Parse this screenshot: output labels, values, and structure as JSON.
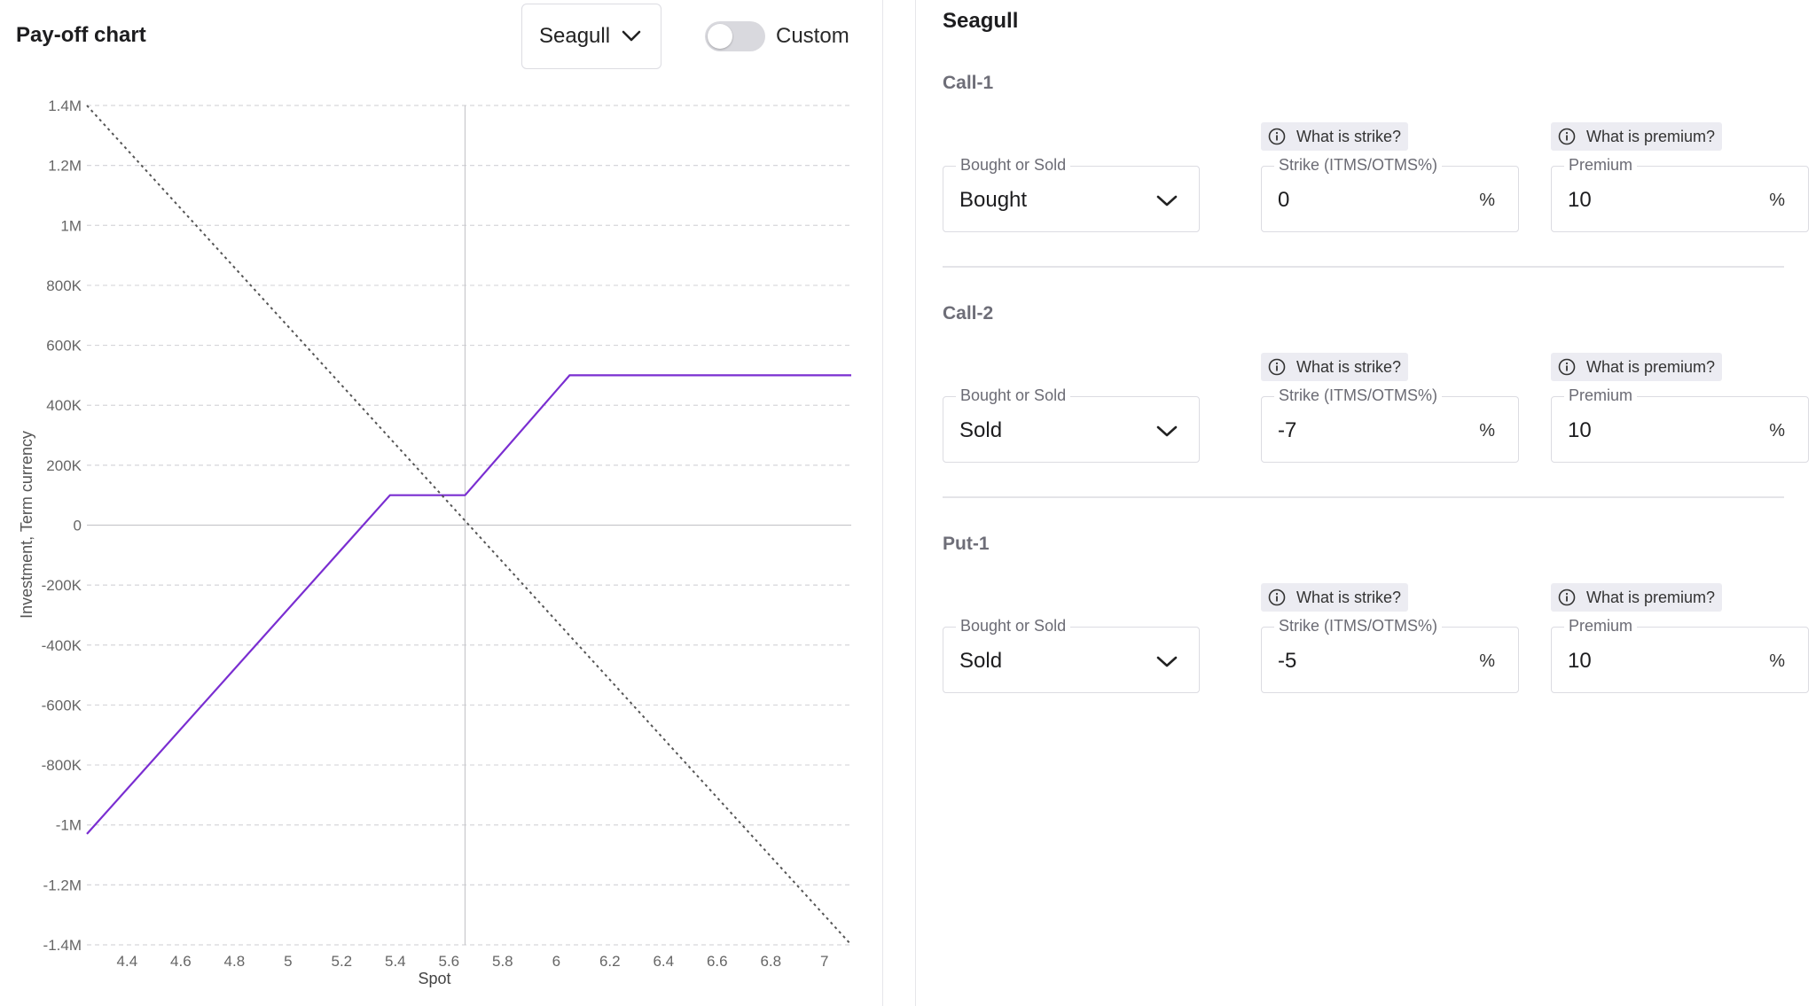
{
  "chart_panel": {
    "title": "Pay-off chart",
    "strategy_select": {
      "value": "Seagull"
    },
    "custom_toggle": {
      "label": "Custom",
      "on": false
    }
  },
  "chart_data": {
    "type": "line",
    "xlabel": "Spot",
    "ylabel": "Investment, Term currency",
    "xlim": [
      4.25,
      7.1
    ],
    "ylim": [
      -1400000,
      1400000
    ],
    "x_ticks": [
      "4.4",
      "4.6",
      "4.8",
      "5",
      "5.2",
      "5.4",
      "5.6",
      "5.8",
      "6",
      "6.2",
      "6.4",
      "6.6",
      "6.8",
      "7"
    ],
    "y_ticks": [
      {
        "value": 1400000,
        "label": "1.4M"
      },
      {
        "value": 1200000,
        "label": "1.2M"
      },
      {
        "value": 1000000,
        "label": "1M"
      },
      {
        "value": 800000,
        "label": "800K"
      },
      {
        "value": 600000,
        "label": "600K"
      },
      {
        "value": 400000,
        "label": "400K"
      },
      {
        "value": 200000,
        "label": "200K"
      },
      {
        "value": 0,
        "label": "0"
      },
      {
        "value": -200000,
        "label": "-200K"
      },
      {
        "value": -400000,
        "label": "-400K"
      },
      {
        "value": -600000,
        "label": "-600K"
      },
      {
        "value": -800000,
        "label": "-800K"
      },
      {
        "value": -1000000,
        "label": "-1M"
      },
      {
        "value": -1200000,
        "label": "-1.2M"
      },
      {
        "value": -1400000,
        "label": "-1.4M"
      }
    ],
    "grid": true,
    "spot_line_x": 5.66,
    "series": [
      {
        "style": "solid",
        "color": "#7a2ed1",
        "points": [
          [
            4.25,
            -1030000
          ],
          [
            5.38,
            100000
          ],
          [
            5.66,
            100000
          ],
          [
            6.05,
            500000
          ],
          [
            7.1,
            500000
          ]
        ]
      },
      {
        "style": "dotted",
        "color": "#555555",
        "points": [
          [
            4.25,
            1400000
          ],
          [
            7.1,
            -1400000
          ]
        ]
      }
    ]
  },
  "strategy_panel": {
    "title": "Seagull",
    "legs": [
      {
        "name": "Call-1",
        "strike_help": "What is strike?",
        "premium_help": "What is premium?",
        "bs_label": "Bought or Sold",
        "bs_value": "Bought",
        "strike_label": "Strike (ITMS/OTMS%)",
        "strike_value": "0",
        "strike_unit": "%",
        "premium_label": "Premium",
        "premium_value": "10",
        "premium_unit": "%"
      },
      {
        "name": "Call-2",
        "strike_help": "What is strike?",
        "premium_help": "What is premium?",
        "bs_label": "Bought or Sold",
        "bs_value": "Sold",
        "strike_label": "Strike (ITMS/OTMS%)",
        "strike_value": "-7",
        "strike_unit": "%",
        "premium_label": "Premium",
        "premium_value": "10",
        "premium_unit": "%"
      },
      {
        "name": "Put-1",
        "strike_help": "What is strike?",
        "premium_help": "What is premium?",
        "bs_label": "Bought or Sold",
        "bs_value": "Sold",
        "strike_label": "Strike (ITMS/OTMS%)",
        "strike_value": "-5",
        "strike_unit": "%",
        "premium_label": "Premium",
        "premium_value": "10",
        "premium_unit": "%"
      }
    ]
  }
}
